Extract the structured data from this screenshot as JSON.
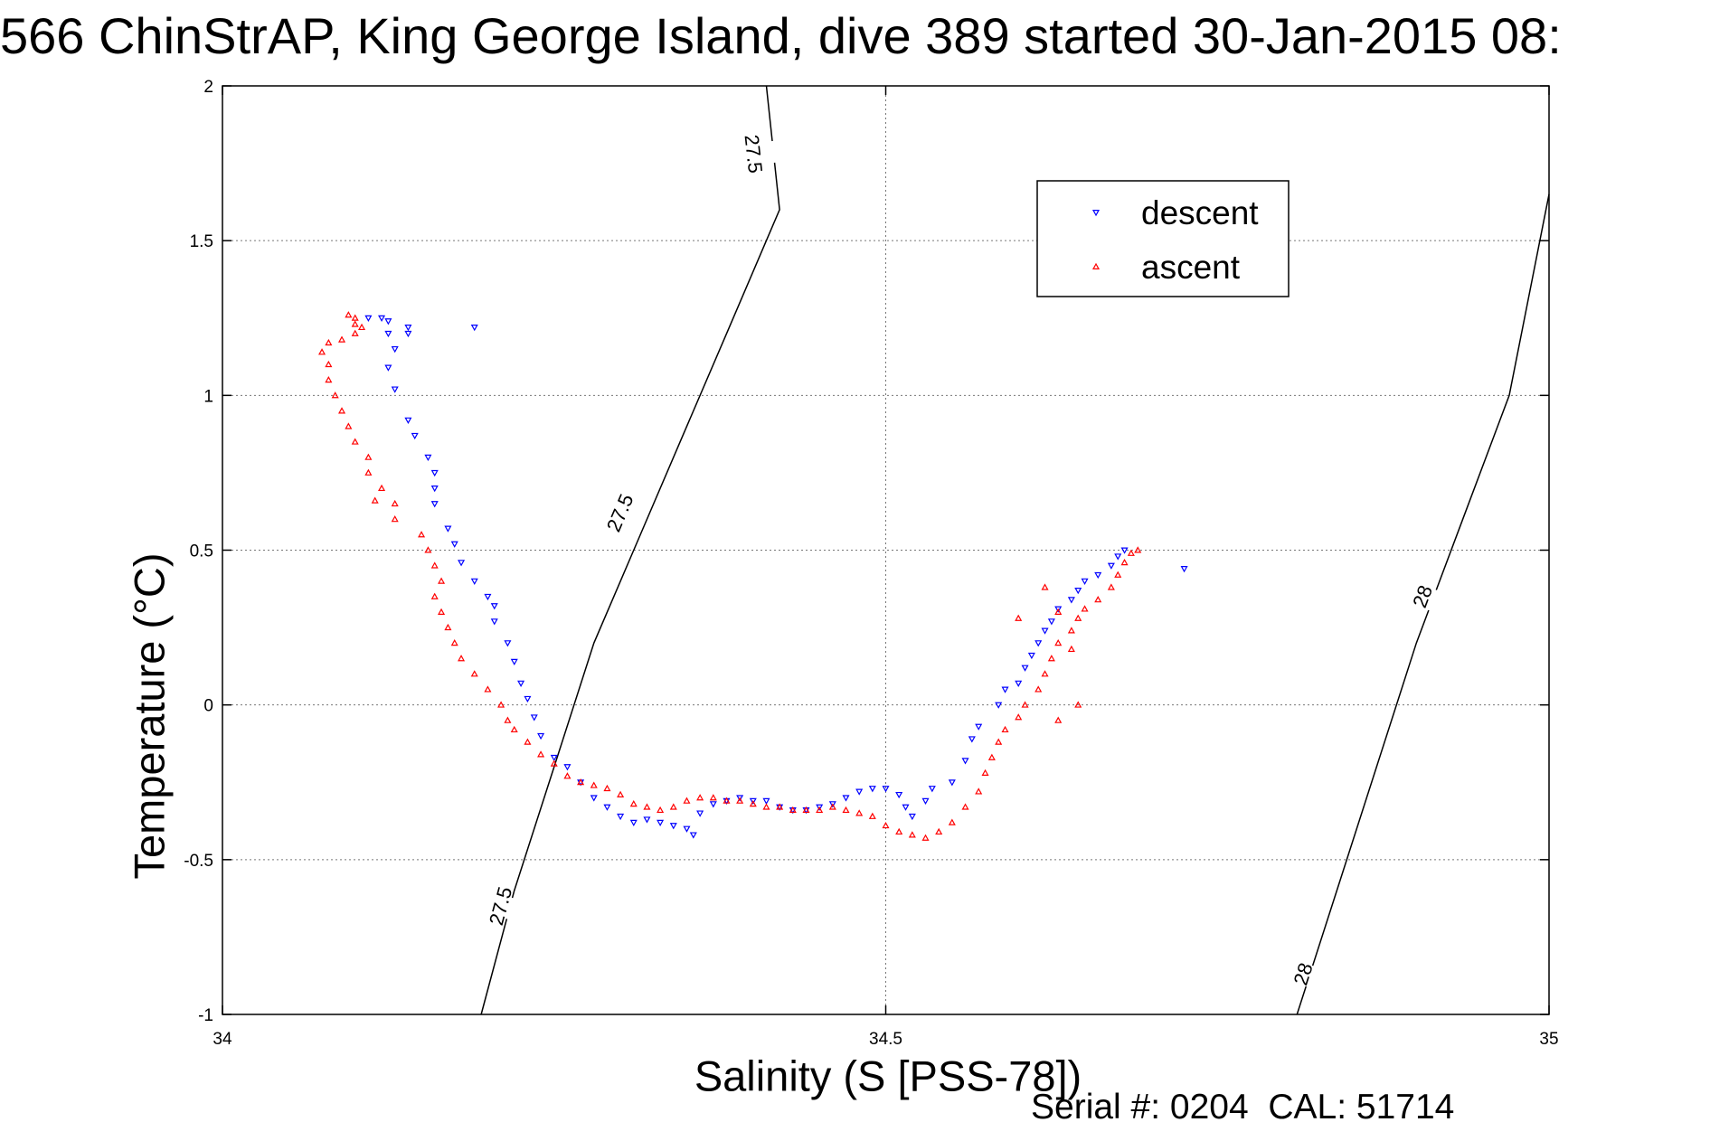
{
  "chart_data": {
    "type": "scatter",
    "title": "566 ChinStrAP, King George Island, dive 389 started 30-Jan-2015 08:",
    "xlabel": "Salinity (S [PSS-78])",
    "ylabel": "Temperature (°C)",
    "xlim": [
      34,
      35
    ],
    "ylim": [
      -1,
      2
    ],
    "x_ticks": [
      "34",
      "34.5",
      "35"
    ],
    "x_tick_values": [
      34,
      34.5,
      35
    ],
    "y_ticks": [
      "2",
      "1.5",
      "1",
      "0.5",
      "0",
      "-0.5",
      "-1"
    ],
    "y_tick_values": [
      2,
      1.5,
      1,
      0.5,
      0,
      -0.5,
      -1
    ],
    "grid": true,
    "legend_position": "top-right",
    "series": [
      {
        "name": "descent",
        "color": "#0000ff",
        "marker": "down-triangle",
        "points": [
          [
            34.11,
            1.25
          ],
          [
            34.12,
            1.25
          ],
          [
            34.125,
            1.24
          ],
          [
            34.14,
            1.22
          ],
          [
            34.14,
            1.2
          ],
          [
            34.19,
            1.22
          ],
          [
            34.125,
            1.2
          ],
          [
            34.13,
            1.15
          ],
          [
            34.125,
            1.09
          ],
          [
            34.13,
            1.02
          ],
          [
            34.14,
            0.92
          ],
          [
            34.145,
            0.87
          ],
          [
            34.155,
            0.8
          ],
          [
            34.16,
            0.75
          ],
          [
            34.16,
            0.7
          ],
          [
            34.16,
            0.65
          ],
          [
            34.17,
            0.57
          ],
          [
            34.175,
            0.52
          ],
          [
            34.18,
            0.46
          ],
          [
            34.19,
            0.4
          ],
          [
            34.2,
            0.35
          ],
          [
            34.205,
            0.32
          ],
          [
            34.205,
            0.27
          ],
          [
            34.215,
            0.2
          ],
          [
            34.22,
            0.14
          ],
          [
            34.225,
            0.07
          ],
          [
            34.23,
            0.02
          ],
          [
            34.235,
            -0.04
          ],
          [
            34.24,
            -0.1
          ],
          [
            34.25,
            -0.17
          ],
          [
            34.26,
            -0.2
          ],
          [
            34.27,
            -0.25
          ],
          [
            34.28,
            -0.3
          ],
          [
            34.29,
            -0.33
          ],
          [
            34.3,
            -0.36
          ],
          [
            34.31,
            -0.38
          ],
          [
            34.32,
            -0.37
          ],
          [
            34.33,
            -0.38
          ],
          [
            34.34,
            -0.39
          ],
          [
            34.35,
            -0.4
          ],
          [
            34.355,
            -0.42
          ],
          [
            34.36,
            -0.35
          ],
          [
            34.37,
            -0.32
          ],
          [
            34.38,
            -0.31
          ],
          [
            34.39,
            -0.3
          ],
          [
            34.4,
            -0.31
          ],
          [
            34.41,
            -0.31
          ],
          [
            34.42,
            -0.33
          ],
          [
            34.43,
            -0.34
          ],
          [
            34.44,
            -0.34
          ],
          [
            34.45,
            -0.33
          ],
          [
            34.46,
            -0.32
          ],
          [
            34.47,
            -0.3
          ],
          [
            34.48,
            -0.28
          ],
          [
            34.49,
            -0.27
          ],
          [
            34.5,
            -0.27
          ],
          [
            34.51,
            -0.29
          ],
          [
            34.515,
            -0.33
          ],
          [
            34.52,
            -0.36
          ],
          [
            34.53,
            -0.31
          ],
          [
            34.535,
            -0.27
          ],
          [
            34.55,
            -0.25
          ],
          [
            34.56,
            -0.18
          ],
          [
            34.565,
            -0.11
          ],
          [
            34.57,
            -0.07
          ],
          [
            34.585,
            0.0
          ],
          [
            34.59,
            0.05
          ],
          [
            34.6,
            0.07
          ],
          [
            34.605,
            0.12
          ],
          [
            34.61,
            0.16
          ],
          [
            34.615,
            0.2
          ],
          [
            34.62,
            0.24
          ],
          [
            34.625,
            0.27
          ],
          [
            34.63,
            0.31
          ],
          [
            34.64,
            0.34
          ],
          [
            34.645,
            0.37
          ],
          [
            34.65,
            0.4
          ],
          [
            34.66,
            0.42
          ],
          [
            34.67,
            0.45
          ],
          [
            34.675,
            0.48
          ],
          [
            34.68,
            0.5
          ],
          [
            34.725,
            0.44
          ]
        ]
      },
      {
        "name": "ascent",
        "color": "#ff0000",
        "marker": "up-triangle",
        "points": [
          [
            34.095,
            1.26
          ],
          [
            34.1,
            1.25
          ],
          [
            34.1,
            1.23
          ],
          [
            34.105,
            1.22
          ],
          [
            34.1,
            1.2
          ],
          [
            34.09,
            1.18
          ],
          [
            34.08,
            1.17
          ],
          [
            34.075,
            1.14
          ],
          [
            34.08,
            1.1
          ],
          [
            34.08,
            1.05
          ],
          [
            34.085,
            1.0
          ],
          [
            34.09,
            0.95
          ],
          [
            34.095,
            0.9
          ],
          [
            34.1,
            0.85
          ],
          [
            34.11,
            0.8
          ],
          [
            34.11,
            0.75
          ],
          [
            34.12,
            0.7
          ],
          [
            34.115,
            0.66
          ],
          [
            34.13,
            0.65
          ],
          [
            34.13,
            0.6
          ],
          [
            34.15,
            0.55
          ],
          [
            34.155,
            0.5
          ],
          [
            34.16,
            0.45
          ],
          [
            34.165,
            0.4
          ],
          [
            34.16,
            0.35
          ],
          [
            34.165,
            0.3
          ],
          [
            34.17,
            0.25
          ],
          [
            34.175,
            0.2
          ],
          [
            34.18,
            0.15
          ],
          [
            34.19,
            0.1
          ],
          [
            34.2,
            0.05
          ],
          [
            34.21,
            0.0
          ],
          [
            34.215,
            -0.05
          ],
          [
            34.22,
            -0.08
          ],
          [
            34.23,
            -0.12
          ],
          [
            34.24,
            -0.16
          ],
          [
            34.25,
            -0.19
          ],
          [
            34.26,
            -0.23
          ],
          [
            34.27,
            -0.25
          ],
          [
            34.28,
            -0.26
          ],
          [
            34.29,
            -0.27
          ],
          [
            34.3,
            -0.29
          ],
          [
            34.31,
            -0.32
          ],
          [
            34.32,
            -0.33
          ],
          [
            34.33,
            -0.34
          ],
          [
            34.34,
            -0.33
          ],
          [
            34.35,
            -0.31
          ],
          [
            34.36,
            -0.3
          ],
          [
            34.37,
            -0.3
          ],
          [
            34.38,
            -0.31
          ],
          [
            34.39,
            -0.31
          ],
          [
            34.4,
            -0.32
          ],
          [
            34.41,
            -0.33
          ],
          [
            34.42,
            -0.33
          ],
          [
            34.43,
            -0.34
          ],
          [
            34.44,
            -0.34
          ],
          [
            34.45,
            -0.34
          ],
          [
            34.46,
            -0.33
          ],
          [
            34.47,
            -0.34
          ],
          [
            34.48,
            -0.35
          ],
          [
            34.49,
            -0.36
          ],
          [
            34.5,
            -0.39
          ],
          [
            34.51,
            -0.41
          ],
          [
            34.52,
            -0.42
          ],
          [
            34.53,
            -0.43
          ],
          [
            34.54,
            -0.41
          ],
          [
            34.55,
            -0.38
          ],
          [
            34.56,
            -0.33
          ],
          [
            34.57,
            -0.28
          ],
          [
            34.575,
            -0.22
          ],
          [
            34.58,
            -0.17
          ],
          [
            34.585,
            -0.12
          ],
          [
            34.59,
            -0.08
          ],
          [
            34.6,
            -0.04
          ],
          [
            34.605,
            0.0
          ],
          [
            34.615,
            0.05
          ],
          [
            34.62,
            0.1
          ],
          [
            34.625,
            0.15
          ],
          [
            34.63,
            0.2
          ],
          [
            34.64,
            0.24
          ],
          [
            34.645,
            0.28
          ],
          [
            34.65,
            0.31
          ],
          [
            34.66,
            0.34
          ],
          [
            34.67,
            0.38
          ],
          [
            34.675,
            0.42
          ],
          [
            34.68,
            0.46
          ],
          [
            34.685,
            0.49
          ],
          [
            34.69,
            0.5
          ],
          [
            34.62,
            0.38
          ],
          [
            34.63,
            0.3
          ],
          [
            34.64,
            0.18
          ],
          [
            34.6,
            0.28
          ],
          [
            34.645,
            0.0
          ],
          [
            34.63,
            -0.05
          ]
        ]
      }
    ],
    "isopycnals": [
      {
        "label": "27.5",
        "points": [
          [
            34.195,
            -1.0
          ],
          [
            34.22,
            -0.6
          ],
          [
            34.25,
            -0.2
          ],
          [
            34.28,
            0.2
          ],
          [
            34.31,
            0.5
          ],
          [
            34.345,
            0.85
          ],
          [
            34.38,
            1.2
          ],
          [
            34.42,
            1.6
          ],
          [
            34.41,
            2.0
          ]
        ],
        "label_positions": [
          [
            34.21,
            -0.65
          ],
          [
            34.3,
            0.62
          ],
          [
            34.4,
            1.78
          ]
        ]
      },
      {
        "label": "28",
        "points": [
          [
            34.81,
            -1.0
          ],
          [
            34.84,
            -0.6
          ],
          [
            34.87,
            -0.2
          ],
          [
            34.9,
            0.2
          ],
          [
            34.935,
            0.6
          ],
          [
            34.97,
            1.0
          ],
          [
            35.0,
            1.65
          ]
        ],
        "label_positions": [
          [
            34.815,
            -0.87
          ],
          [
            34.905,
            0.35
          ]
        ]
      }
    ]
  },
  "footer": {
    "serial_label": "Serial #:",
    "serial_value": "0204",
    "cal_label": "CAL:",
    "cal_value": "51714"
  }
}
